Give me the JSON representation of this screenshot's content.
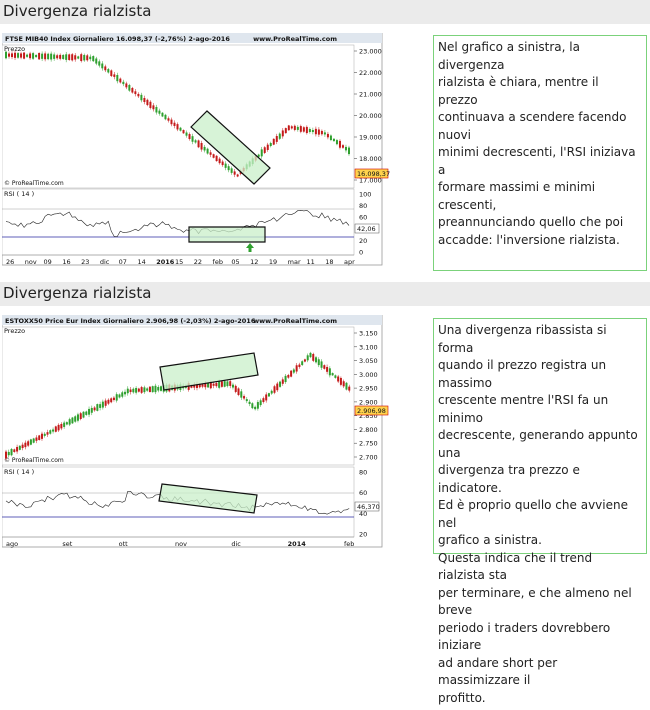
{
  "section1": {
    "title": "Divergenza rialzista",
    "chart": {
      "header_left": "FTSE MIB40 Index   Giornaliero   16.098,37 (-2,76%)   2-ago-2016",
      "header_right": "www.ProRealTime.com",
      "price_label": "Prezzo",
      "watermark": "© ProRealTime.com",
      "price_axis": [
        "23.000",
        "22.000",
        "21.000",
        "20.000",
        "19.000",
        "18.000",
        "17.000"
      ],
      "last_price": "16.098,37",
      "rsi_label": "RSI ( 14 )",
      "rsi_axis": [
        "100",
        "80",
        "60",
        "40",
        "20",
        "0"
      ],
      "rsi_last": "42,06",
      "x_labels": [
        "26",
        "nov",
        "09",
        "16",
        "23",
        "dic",
        "07",
        "14",
        "2016",
        "15",
        "22",
        "feb",
        "05",
        "12",
        "19",
        "mar",
        "11",
        "18",
        "apr"
      ]
    },
    "text": [
      "Nel grafico a sinistra, la divergenza",
      "rialzista è chiara, mentre il prezzo",
      "continuava a scendere facendo nuovi",
      "minimi decrescenti, l'RSI iniziava a",
      "formare massimi e minimi crescenti,",
      "preannunciando quello che poi",
      "accadde: l'inversione rialzista."
    ]
  },
  "section2": {
    "title": "Divergenza rialzista",
    "chart": {
      "header_left": "ESTOXX50 Price Eur Index   Giornaliero   2.906,98 (-2,03%)   2-ago-2016",
      "header_right": "www.ProRealTime.com",
      "price_label": "Prezzo",
      "watermark": "© ProRealTime.com",
      "price_axis": [
        "3.150",
        "3.100",
        "3.050",
        "3.000",
        "2.950",
        "2.900",
        "2.850",
        "2.800",
        "2.750",
        "2.700"
      ],
      "last_price": "2.906,98",
      "rsi_label": "RSI ( 14 )",
      "rsi_axis": [
        "80",
        "60",
        "40",
        "20"
      ],
      "rsi_last": "46,370",
      "x_labels": [
        "ago",
        "set",
        "ott",
        "nov",
        "dic",
        "2014",
        "feb"
      ]
    },
    "text": [
      "Una divergenza ribassista si forma",
      "quando il prezzo registra un massimo",
      "crescente mentre l'RSI fa un minimo",
      "decrescente, generando appunto una",
      "divergenza tra prezzo e indicatore.",
      "Ed è proprio quello che avviene nel",
      "grafico a sinistra.",
      "Questa indica che il trend rialzista sta",
      "per terminare, e che almeno nel breve",
      "periodo i traders dovrebbero iniziare",
      "ad andare short per massimizzare il",
      "profitto."
    ]
  },
  "colors": {
    "candle_up": "#2fa02f",
    "candle_down": "#c41a1a",
    "highlight_fill": "#c9efc9",
    "highlight_border": "#111111",
    "textbox_border": "#7bd27b",
    "rsi_line": "#222222",
    "rsi_level_line": "#2a2aa0",
    "price_tag_fill": "#ffd34d",
    "price_tag_border": "#cc0000",
    "header_bg": "#ebebeb"
  }
}
